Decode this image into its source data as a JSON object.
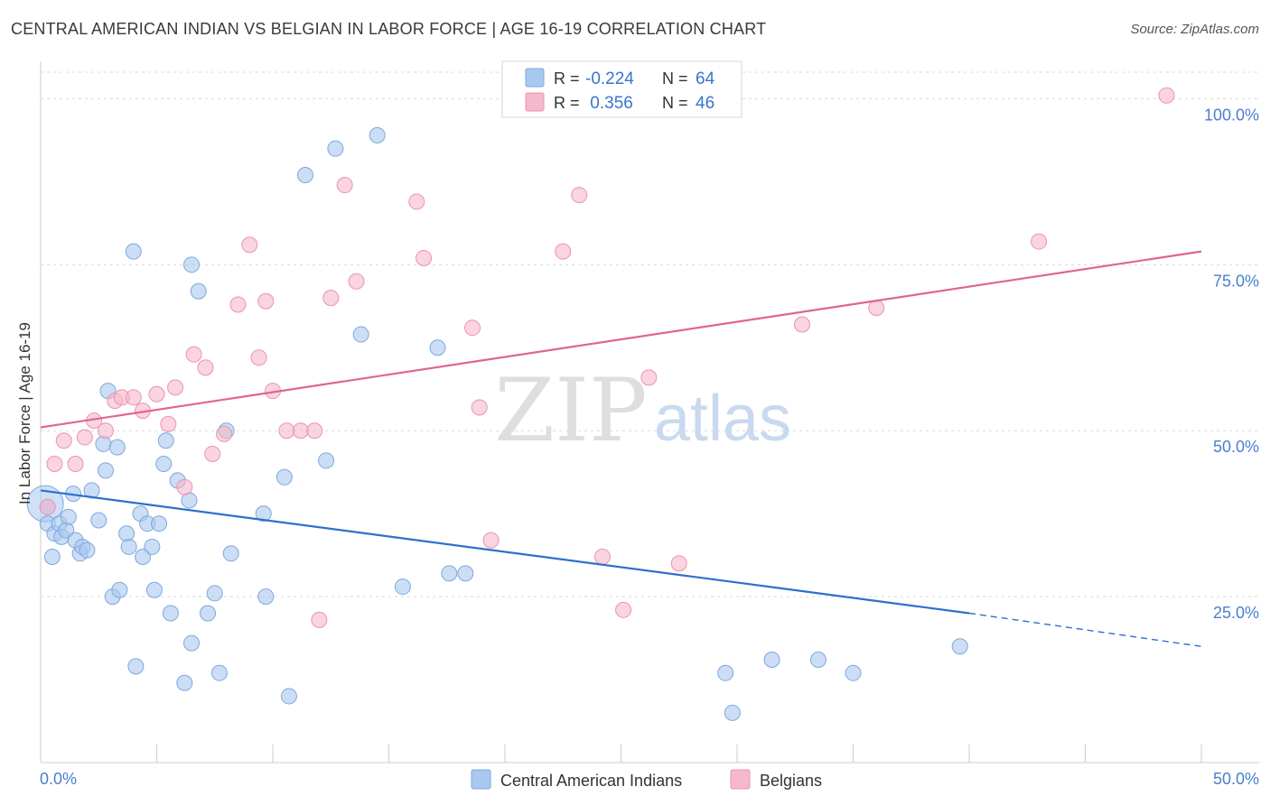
{
  "title": "CENTRAL AMERICAN INDIAN VS BELGIAN IN LABOR FORCE | AGE 16-19 CORRELATION CHART",
  "source": "Source: ZipAtlas.com",
  "watermark": {
    "zip": "ZIP",
    "atlas": "atlas"
  },
  "colors": {
    "blue": "#a8c8f0",
    "blue_stroke": "#7ea8dc",
    "blue_line": "#2f6fcc",
    "pink": "#f6b8cc",
    "pink_stroke": "#eb93b0",
    "pink_line": "#e0658f",
    "tick_text": "#4a7fd0",
    "grid": "#d9d9d9",
    "axis": "#cccccc"
  },
  "legend_box": {
    "rows": [
      {
        "r_label": "R =",
        "r_value": "-0.224",
        "n_label": "N =",
        "n_value": "64"
      },
      {
        "r_label": "R =",
        "r_value": " 0.356",
        "n_label": "N =",
        "n_value": "46"
      }
    ]
  },
  "chart_data": {
    "type": "scatter",
    "xlabel": "",
    "ylabel": "In Labor Force | Age 16-19",
    "xlim": [
      0,
      50
    ],
    "ylim": [
      0,
      104
    ],
    "x_tick_labels": [
      "0.0%",
      "50.0%"
    ],
    "y_ticks": [
      25,
      50,
      75,
      100
    ],
    "y_tick_labels": [
      "25.0%",
      "50.0%",
      "75.0%",
      "100.0%"
    ],
    "series": [
      {
        "name": "Central American Indians",
        "color": "blue",
        "trend": {
          "x0": 0,
          "y0": 41,
          "x1": 40,
          "y1": 22.5,
          "dash_x1": 50,
          "dash_y1": 17.5
        },
        "points": [
          [
            0.3,
            38.5
          ],
          [
            0.3,
            36
          ],
          [
            0.5,
            31
          ],
          [
            0.6,
            34.5
          ],
          [
            0.8,
            36
          ],
          [
            0.9,
            34
          ],
          [
            1.1,
            35
          ],
          [
            1.2,
            37
          ],
          [
            1.4,
            40.5
          ],
          [
            1.5,
            33.5
          ],
          [
            1.7,
            31.5
          ],
          [
            1.8,
            32.5
          ],
          [
            2.0,
            32
          ],
          [
            2.2,
            41
          ],
          [
            2.5,
            36.5
          ],
          [
            2.7,
            48
          ],
          [
            2.8,
            44
          ],
          [
            2.9,
            56
          ],
          [
            3.1,
            25
          ],
          [
            3.3,
            47.5
          ],
          [
            3.4,
            26
          ],
          [
            3.7,
            34.5
          ],
          [
            3.8,
            32.5
          ],
          [
            4.0,
            77
          ],
          [
            4.1,
            14.5
          ],
          [
            4.3,
            37.5
          ],
          [
            4.4,
            31
          ],
          [
            4.6,
            36
          ],
          [
            4.8,
            32.5
          ],
          [
            4.9,
            26
          ],
          [
            5.1,
            36
          ],
          [
            5.3,
            45
          ],
          [
            5.4,
            48.5
          ],
          [
            5.6,
            22.5
          ],
          [
            5.9,
            42.5
          ],
          [
            6.2,
            12
          ],
          [
            6.4,
            39.5
          ],
          [
            6.5,
            75
          ],
          [
            6.5,
            18
          ],
          [
            6.8,
            71
          ],
          [
            7.2,
            22.5
          ],
          [
            7.5,
            25.5
          ],
          [
            7.7,
            13.5
          ],
          [
            8.0,
            50
          ],
          [
            8.2,
            31.5
          ],
          [
            9.6,
            37.5
          ],
          [
            9.7,
            25
          ],
          [
            10.5,
            43
          ],
          [
            10.7,
            10
          ],
          [
            11.4,
            88.5
          ],
          [
            12.3,
            45.5
          ],
          [
            12.7,
            92.5
          ],
          [
            13.8,
            64.5
          ],
          [
            14.5,
            94.5
          ],
          [
            15.6,
            26.5
          ],
          [
            17.1,
            62.5
          ],
          [
            17.6,
            28.5
          ],
          [
            18.3,
            28.5
          ],
          [
            29.5,
            13.5
          ],
          [
            29.8,
            7.5
          ],
          [
            31.5,
            15.5
          ],
          [
            33.5,
            15.5
          ],
          [
            35.0,
            13.5
          ],
          [
            39.6,
            17.5
          ]
        ],
        "big_points": [
          [
            0.2,
            39
          ]
        ]
      },
      {
        "name": "Belgians",
        "color": "pink",
        "trend": {
          "x0": 0,
          "y0": 50.5,
          "x1": 50,
          "y1": 77
        },
        "points": [
          [
            0.3,
            38.5
          ],
          [
            0.6,
            45
          ],
          [
            1.0,
            48.5
          ],
          [
            1.5,
            45
          ],
          [
            1.9,
            49
          ],
          [
            2.3,
            51.5
          ],
          [
            2.8,
            50
          ],
          [
            3.2,
            54.5
          ],
          [
            3.5,
            55
          ],
          [
            4.0,
            55
          ],
          [
            4.4,
            53
          ],
          [
            5.0,
            55.5
          ],
          [
            5.5,
            51
          ],
          [
            5.8,
            56.5
          ],
          [
            6.2,
            41.5
          ],
          [
            6.6,
            61.5
          ],
          [
            7.1,
            59.5
          ],
          [
            7.4,
            46.5
          ],
          [
            7.9,
            49.5
          ],
          [
            8.5,
            69
          ],
          [
            9.0,
            78
          ],
          [
            9.4,
            61
          ],
          [
            9.7,
            69.5
          ],
          [
            10.0,
            56
          ],
          [
            10.6,
            50
          ],
          [
            11.2,
            50
          ],
          [
            11.8,
            50
          ],
          [
            12.0,
            21.5
          ],
          [
            12.5,
            70
          ],
          [
            13.1,
            87
          ],
          [
            13.6,
            72.5
          ],
          [
            16.2,
            84.5
          ],
          [
            16.5,
            76
          ],
          [
            18.6,
            65.5
          ],
          [
            18.9,
            53.5
          ],
          [
            19.4,
            33.5
          ],
          [
            22.5,
            77
          ],
          [
            23.2,
            85.5
          ],
          [
            24.2,
            31
          ],
          [
            25.1,
            23
          ],
          [
            26.2,
            58
          ],
          [
            27.5,
            30
          ],
          [
            32.8,
            66
          ],
          [
            36.0,
            68.5
          ],
          [
            43.0,
            78.5
          ],
          [
            48.5,
            100.5
          ]
        ],
        "big_points": []
      }
    ]
  }
}
